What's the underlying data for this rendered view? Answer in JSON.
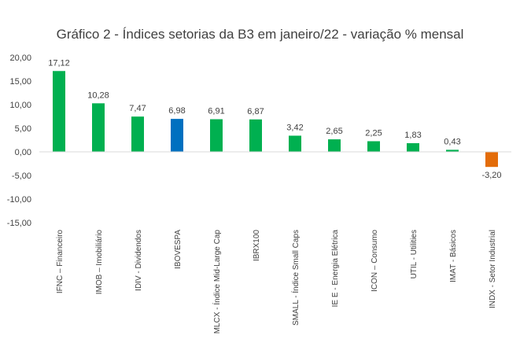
{
  "chart_data": {
    "type": "bar",
    "title": "Gráfico 2 - Índices setorias da B3 em janeiro/22 - variação % mensal",
    "xlabel": "",
    "ylabel": "",
    "ylim": [
      -15,
      20
    ],
    "yticks": [
      "20,00",
      "15,00",
      "10,00",
      "5,00",
      "0,00",
      "-5,00",
      "-10,00",
      "-15,00"
    ],
    "ytick_values": [
      20,
      15,
      10,
      5,
      0,
      -5,
      -10,
      -15
    ],
    "grid": false,
    "legend": "none",
    "categories": [
      "IFNC – Financeiro",
      "IMOB – Imobiliário",
      "IDIV - Dividendos",
      "IBOVESPA",
      "MLCX - Índice Mid-Large Cap",
      "IBRX100",
      "SMALL - Índice Small Caps",
      "IE E - Energia Elétrica",
      "ICON – Consumo",
      "UTIL - Utilities",
      "IMAT - Básicos",
      "INDX - Setor Industrial"
    ],
    "values": [
      17.12,
      10.28,
      7.47,
      6.98,
      6.91,
      6.87,
      3.42,
      2.65,
      2.25,
      1.83,
      0.43,
      -3.2
    ],
    "data_labels": [
      "17,12",
      "10,28",
      "7,47",
      "6,98",
      "6,91",
      "6,87",
      "3,42",
      "2,65",
      "2,25",
      "1,83",
      "0,43",
      "-3,20"
    ],
    "colors": [
      "#00b050",
      "#00b050",
      "#00b050",
      "#0070c0",
      "#00b050",
      "#00b050",
      "#00b050",
      "#00b050",
      "#00b050",
      "#00b050",
      "#00b050",
      "#e36c09"
    ]
  }
}
